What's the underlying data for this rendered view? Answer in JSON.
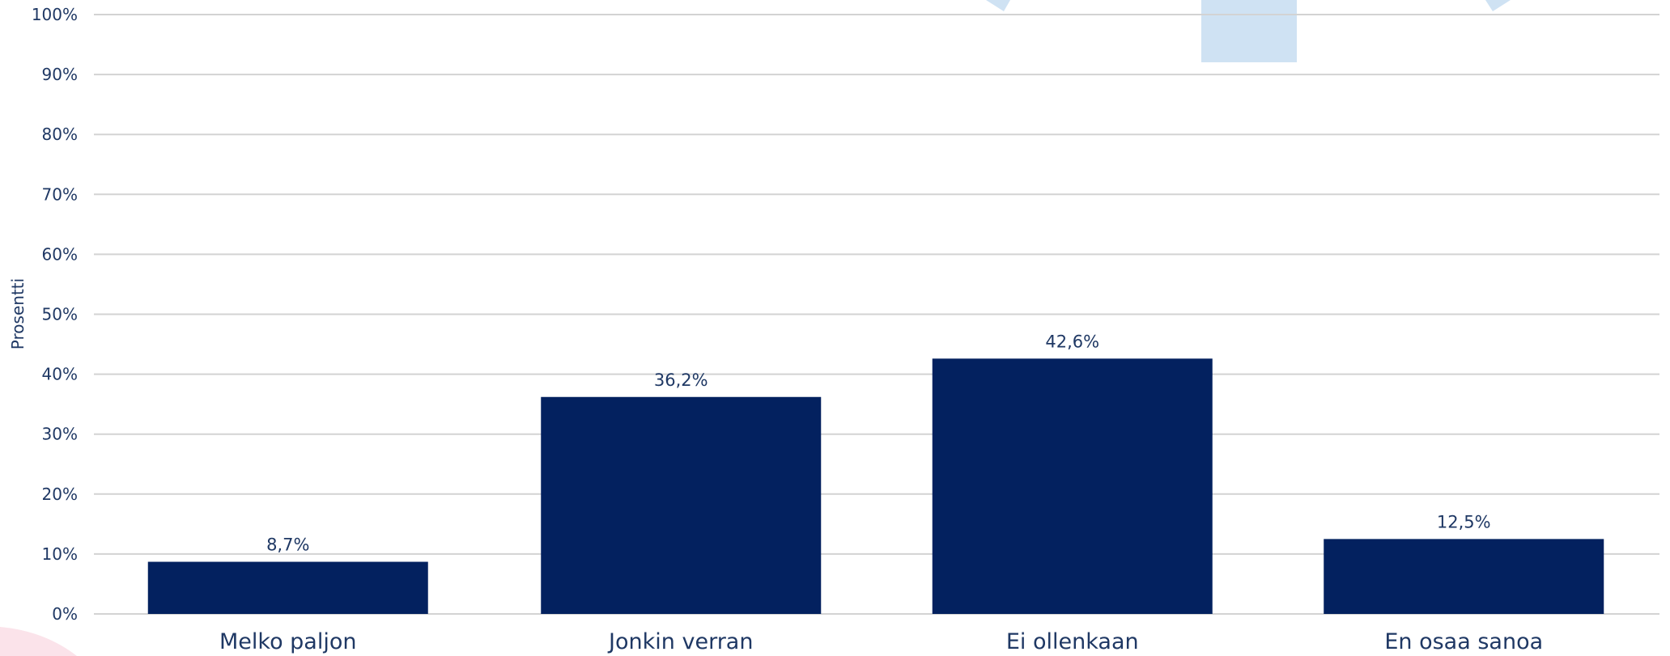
{
  "chart_data": {
    "type": "bar",
    "categories": [
      "Melko paljon",
      "Jonkin verran",
      "Ei ollenkaan",
      "En osaa sanoa"
    ],
    "values": [
      8.7,
      36.2,
      42.6,
      12.5
    ],
    "data_labels": [
      "8,7%",
      "36,2%",
      "42,6%",
      "12,5%"
    ],
    "title": "",
    "xlabel": "",
    "ylabel": "Prosentti",
    "ylim": [
      0,
      100
    ],
    "y_ticks": [
      0,
      10,
      20,
      30,
      40,
      50,
      60,
      70,
      80,
      90,
      100
    ],
    "y_tick_labels": [
      "0%",
      "10%",
      "20%",
      "30%",
      "40%",
      "50%",
      "60%",
      "70%",
      "80%",
      "90%",
      "100%"
    ],
    "grid": true,
    "legend": "none"
  },
  "colors": {
    "bar": "#03215f",
    "text": "#1f3864",
    "gridline": "#d3d3d3",
    "decor_light_blue": "#cfe2f3",
    "decor_pink": "#fbe3ea"
  }
}
